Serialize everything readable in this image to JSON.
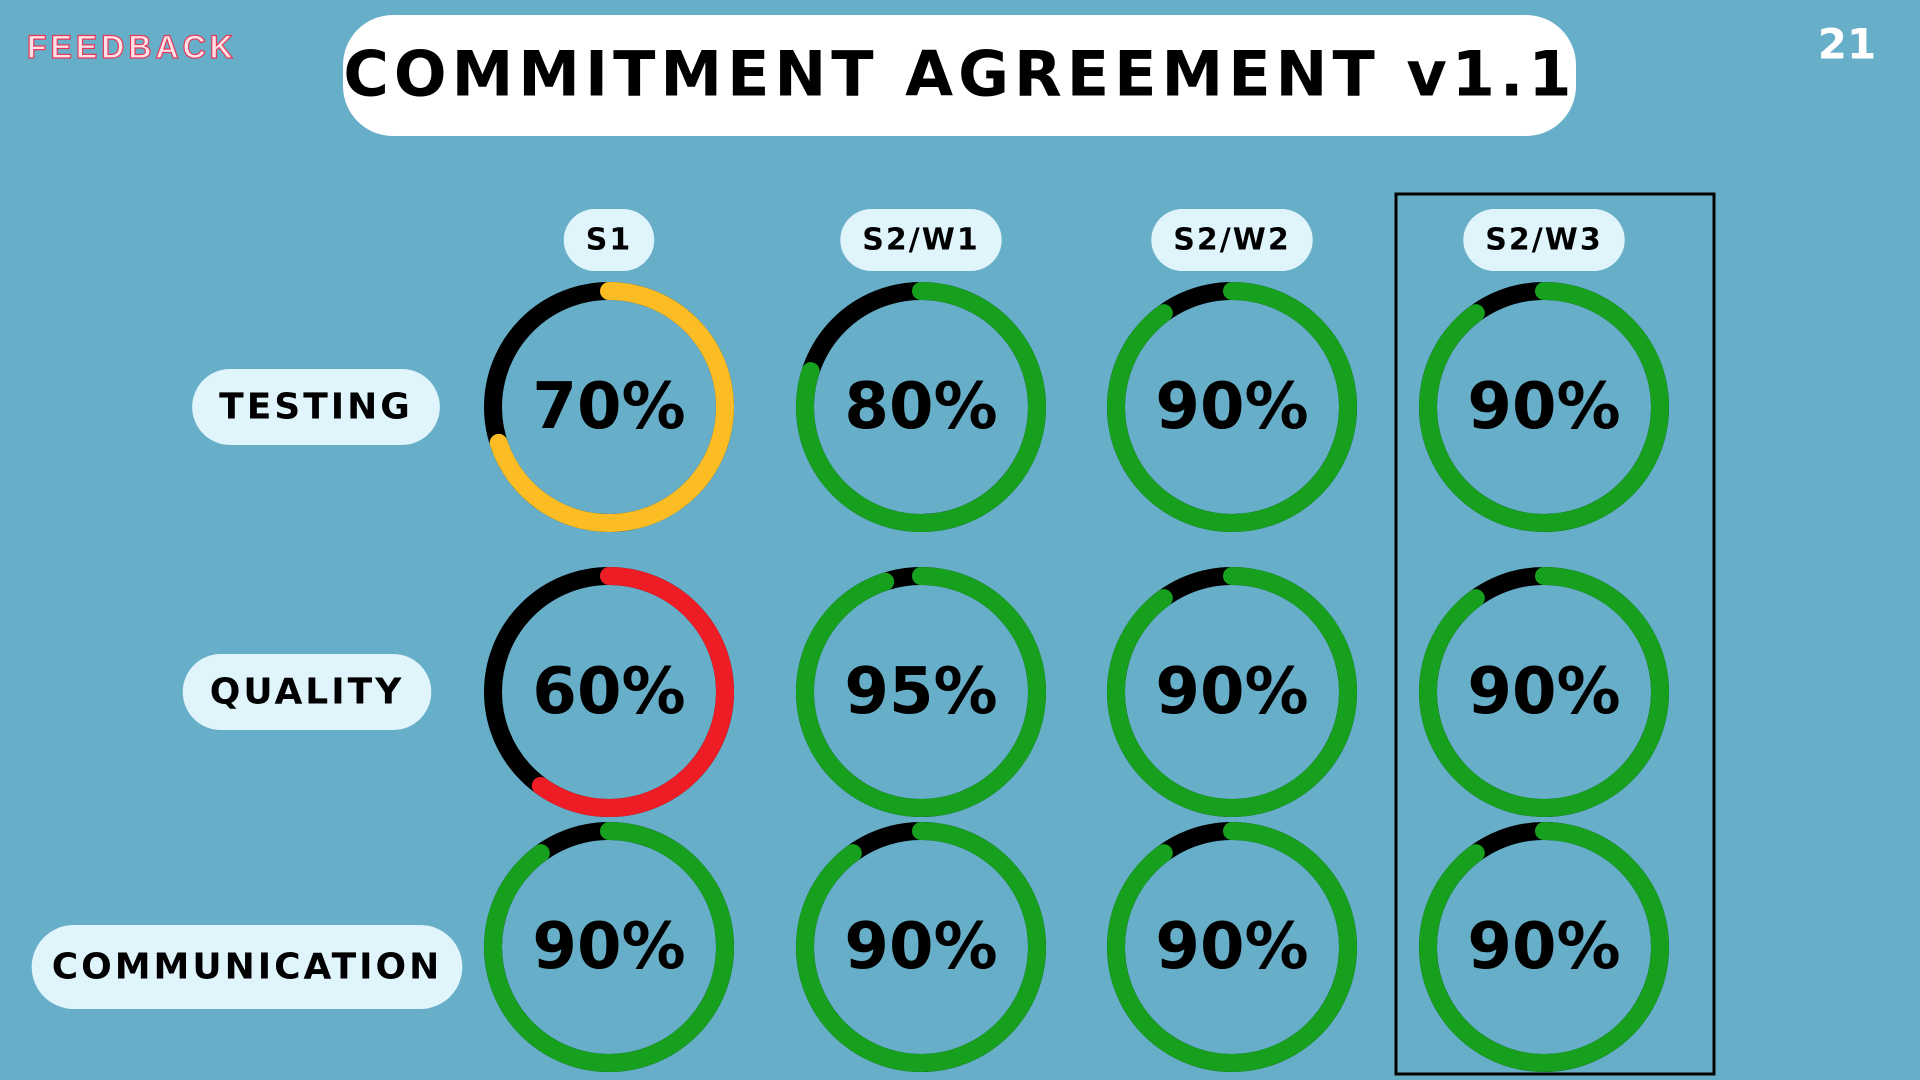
{
  "feedback_label": "FEEDBACK",
  "page_number": 21,
  "chart_data": {
    "type": "donut",
    "title": "COMMITMENT AGREEMENT v1.1",
    "categories": [
      "S1",
      "S2/W1",
      "S2/W2",
      "S2/W3"
    ],
    "track_color": "#000000",
    "highlight_index": 3,
    "series": [
      {
        "name": "TESTING",
        "values": [
          70,
          80,
          90,
          90
        ],
        "value_labels": [
          "70%",
          "80%",
          "90%",
          "90%"
        ],
        "colors": [
          "#fbbd23",
          "#16a01e",
          "#16a01e",
          "#16a01e"
        ]
      },
      {
        "name": "QUALITY",
        "values": [
          60,
          95,
          90,
          90
        ],
        "value_labels": [
          "60%",
          "95%",
          "90%",
          "90%"
        ],
        "colors": [
          "#ee1d25",
          "#16a01e",
          "#16a01e",
          "#16a01e"
        ]
      },
      {
        "name": "COMMUNICATION",
        "values": [
          90,
          90,
          90,
          90
        ],
        "value_labels": [
          "90%",
          "90%",
          "90%",
          "90%"
        ],
        "colors": [
          "#16a01e",
          "#16a01e",
          "#16a01e",
          "#16a01e"
        ]
      }
    ]
  }
}
